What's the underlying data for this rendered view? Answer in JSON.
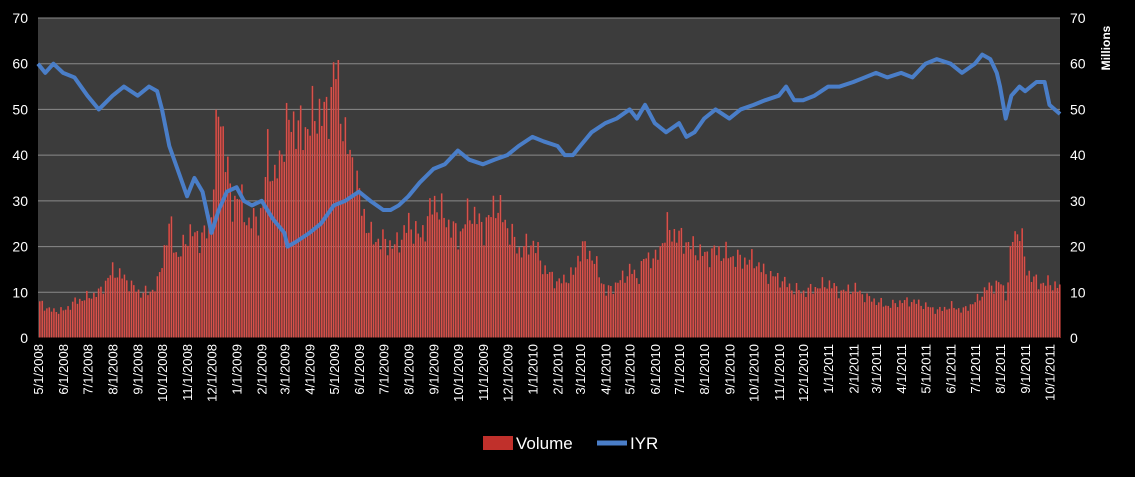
{
  "chart_data": {
    "type": "bar+line",
    "x_start": "2008-05-01",
    "x_end": "2011-10-14",
    "categories": [
      "5/1/2008",
      "6/1/2008",
      "7/1/2008",
      "8/1/2008",
      "9/1/2008",
      "10/1/2008",
      "11/1/2008",
      "12/1/2008",
      "1/1/2009",
      "2/1/2009",
      "3/1/2009",
      "4/1/2009",
      "5/1/2009",
      "6/1/2009",
      "7/1/2009",
      "8/1/2009",
      "9/1/2009",
      "10/1/2009",
      "11/1/2009",
      "12/1/2009",
      "1/1/2010",
      "2/1/2010",
      "3/1/2010",
      "4/1/2010",
      "5/1/2010",
      "6/1/2010",
      "7/1/2010",
      "8/1/2010",
      "9/1/2010",
      "10/1/2010",
      "11/1/2010",
      "12/1/2010",
      "1/1/2011",
      "2/1/2011",
      "3/1/2011",
      "4/1/2011",
      "5/1/2011",
      "6/1/2011",
      "7/1/2011",
      "8/1/2011",
      "9/1/2011",
      "10/1/2011"
    ],
    "left_axis": {
      "min": 0,
      "max": 70,
      "ticks": [
        "0",
        "10",
        "20",
        "30",
        "40",
        "50",
        "60",
        "70"
      ]
    },
    "right_axis": {
      "min": 0,
      "max": 70,
      "ticks": [
        "0",
        "10",
        "20",
        "30",
        "40",
        "50",
        "60",
        "70"
      ],
      "label": "Millions"
    },
    "grid": true,
    "legend_position": "bottom",
    "legend": [
      "Volume",
      "IYR"
    ],
    "colors": {
      "volume": "#C0302B",
      "volume_light": "#E0615A",
      "iyr": "#4A7EC8",
      "plot_bg": "#3C3C3C",
      "grid": "#8A8A8A",
      "text": "#FFFFFF"
    },
    "series": [
      {
        "name": "Volume",
        "type": "bar",
        "axis": "right",
        "x": [
          "2008-05-01",
          "2008-05-15",
          "2008-06-01",
          "2008-06-15",
          "2008-07-01",
          "2008-07-15",
          "2008-08-01",
          "2008-08-15",
          "2008-09-01",
          "2008-09-15",
          "2008-09-25",
          "2008-10-01",
          "2008-10-10",
          "2008-10-20",
          "2008-11-01",
          "2008-11-15",
          "2008-11-25",
          "2008-12-01",
          "2008-12-08",
          "2008-12-15",
          "2008-12-25",
          "2009-01-01",
          "2009-01-15",
          "2009-02-01",
          "2009-02-08",
          "2009-02-15",
          "2009-03-01",
          "2009-03-10",
          "2009-03-20",
          "2009-04-01",
          "2009-04-10",
          "2009-04-20",
          "2009-04-28",
          "2009-05-01",
          "2009-05-08",
          "2009-05-15",
          "2009-05-25",
          "2009-06-01",
          "2009-06-15",
          "2009-07-01",
          "2009-07-15",
          "2009-08-01",
          "2009-08-15",
          "2009-09-01",
          "2009-09-15",
          "2009-10-01",
          "2009-10-15",
          "2009-11-01",
          "2009-11-08",
          "2009-11-15",
          "2009-12-01",
          "2009-12-15",
          "2010-01-01",
          "2010-01-15",
          "2010-02-01",
          "2010-02-10",
          "2010-02-20",
          "2010-03-01",
          "2010-03-15",
          "2010-04-01",
          "2010-04-15",
          "2010-05-01",
          "2010-05-10",
          "2010-05-20",
          "2010-06-01",
          "2010-06-15",
          "2010-07-01",
          "2010-07-15",
          "2010-08-01",
          "2010-08-15",
          "2010-09-01",
          "2010-09-15",
          "2010-10-01",
          "2010-10-15",
          "2010-11-01",
          "2010-11-15",
          "2010-12-01",
          "2010-12-15",
          "2011-01-01",
          "2011-01-15",
          "2011-02-01",
          "2011-02-15",
          "2011-03-01",
          "2011-03-15",
          "2011-04-01",
          "2011-04-15",
          "2011-05-01",
          "2011-05-15",
          "2011-06-01",
          "2011-06-15",
          "2011-07-01",
          "2011-07-15",
          "2011-08-01",
          "2011-08-08",
          "2011-08-15",
          "2011-08-25",
          "2011-09-01",
          "2011-09-15",
          "2011-10-01",
          "2011-10-14"
        ],
        "y": [
          8,
          6,
          6,
          8,
          9,
          10,
          15,
          13,
          10,
          10,
          12,
          18,
          25,
          17,
          23,
          22,
          23,
          30,
          50,
          45,
          28,
          32,
          25,
          27,
          43,
          33,
          45,
          48,
          45,
          47,
          50,
          48,
          55,
          60,
          52,
          42,
          38,
          30,
          22,
          21,
          20,
          25,
          22,
          30,
          26,
          22,
          28,
          24,
          26,
          30,
          24,
          19,
          21,
          15,
          12,
          13,
          14,
          20,
          18,
          10,
          12,
          15,
          13,
          18,
          17,
          24,
          22,
          20,
          18,
          19,
          18,
          17,
          17,
          14,
          13,
          11,
          10,
          11,
          12,
          10,
          11,
          9,
          8,
          7,
          8,
          8,
          7,
          6,
          7,
          6,
          8,
          11,
          12,
          9,
          22,
          24,
          15,
          12,
          12,
          11
        ]
      },
      {
        "name": "IYR",
        "type": "line",
        "axis": "left",
        "x": [
          "2008-05-01",
          "2008-05-10",
          "2008-05-20",
          "2008-06-01",
          "2008-06-15",
          "2008-07-01",
          "2008-07-15",
          "2008-08-01",
          "2008-08-15",
          "2008-09-01",
          "2008-09-15",
          "2008-09-25",
          "2008-10-01",
          "2008-10-10",
          "2008-10-20",
          "2008-11-01",
          "2008-11-10",
          "2008-11-20",
          "2008-12-01",
          "2008-12-10",
          "2008-12-20",
          "2009-01-01",
          "2009-01-10",
          "2009-01-20",
          "2009-02-01",
          "2009-02-15",
          "2009-03-01",
          "2009-03-05",
          "2009-03-15",
          "2009-04-01",
          "2009-04-15",
          "2009-05-01",
          "2009-05-15",
          "2009-06-01",
          "2009-06-15",
          "2009-07-01",
          "2009-07-10",
          "2009-07-20",
          "2009-08-01",
          "2009-08-15",
          "2009-09-01",
          "2009-09-15",
          "2009-10-01",
          "2009-10-15",
          "2009-11-01",
          "2009-11-15",
          "2009-12-01",
          "2009-12-15",
          "2010-01-01",
          "2010-01-15",
          "2010-02-01",
          "2010-02-10",
          "2010-02-20",
          "2010-03-01",
          "2010-03-15",
          "2010-04-01",
          "2010-04-15",
          "2010-05-01",
          "2010-05-10",
          "2010-05-20",
          "2010-06-01",
          "2010-06-15",
          "2010-07-01",
          "2010-07-10",
          "2010-07-20",
          "2010-08-01",
          "2010-08-15",
          "2010-09-01",
          "2010-09-15",
          "2010-10-01",
          "2010-10-15",
          "2010-11-01",
          "2010-11-10",
          "2010-11-20",
          "2010-12-01",
          "2010-12-15",
          "2011-01-01",
          "2011-01-15",
          "2011-02-01",
          "2011-02-15",
          "2011-03-01",
          "2011-03-15",
          "2011-04-01",
          "2011-04-15",
          "2011-05-01",
          "2011-05-15",
          "2011-06-01",
          "2011-06-15",
          "2011-07-01",
          "2011-07-10",
          "2011-07-20",
          "2011-07-28",
          "2011-08-01",
          "2011-08-08",
          "2011-08-15",
          "2011-08-25",
          "2011-09-01",
          "2011-09-15",
          "2011-09-25",
          "2011-10-01",
          "2011-10-14"
        ],
        "y": [
          60,
          58,
          60,
          58,
          57,
          53,
          50,
          53,
          55,
          53,
          55,
          54,
          50,
          42,
          37,
          31,
          35,
          32,
          23,
          28,
          32,
          33,
          30,
          29,
          30,
          26,
          23,
          20,
          21,
          23,
          25,
          29,
          30,
          32,
          30,
          28,
          28,
          29,
          31,
          34,
          37,
          38,
          41,
          39,
          38,
          39,
          40,
          42,
          44,
          43,
          42,
          40,
          40,
          42,
          45,
          47,
          48,
          50,
          48,
          51,
          47,
          45,
          47,
          44,
          45,
          48,
          50,
          48,
          50,
          51,
          52,
          53,
          55,
          52,
          52,
          53,
          55,
          55,
          56,
          57,
          58,
          57,
          58,
          57,
          60,
          61,
          60,
          58,
          60,
          62,
          61,
          58,
          55,
          48,
          53,
          55,
          54,
          56,
          56,
          51,
          49
        ]
      }
    ]
  }
}
